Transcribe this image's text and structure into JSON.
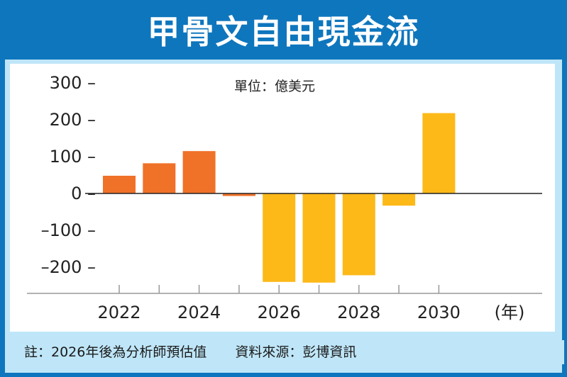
{
  "title": "甲骨文自由現金流",
  "unit_label": "單位：億美元",
  "footnote": {
    "note": "註：2026年後為分析師預估值",
    "source": "資料來源：彭博資訊"
  },
  "colors": {
    "actual": "#f07128",
    "estimate": "#fcb918",
    "header": "#0e76bd",
    "panel": "#bfe6f8"
  },
  "chart_data": {
    "type": "bar",
    "title": "甲骨文自由現金流",
    "xlabel": "(年)",
    "ylabel": "單位：億美元",
    "x": [
      2022,
      2023,
      2024,
      2025,
      2026,
      2027,
      2028,
      2029,
      2030
    ],
    "values": [
      48,
      82,
      115,
      -7,
      -240,
      -242,
      -222,
      -33,
      218
    ],
    "estimate_from": 2026,
    "ylim": [
      -250,
      300
    ],
    "yticks": [
      300,
      200,
      100,
      0,
      -100,
      -200
    ],
    "ytick_labels": [
      "300 –",
      "200 –",
      "100 –",
      "0 –",
      "–100 –",
      "–200 –"
    ],
    "xtick_labels": [
      "2022",
      "2024",
      "2026",
      "2028",
      "2030"
    ],
    "grid": false
  }
}
